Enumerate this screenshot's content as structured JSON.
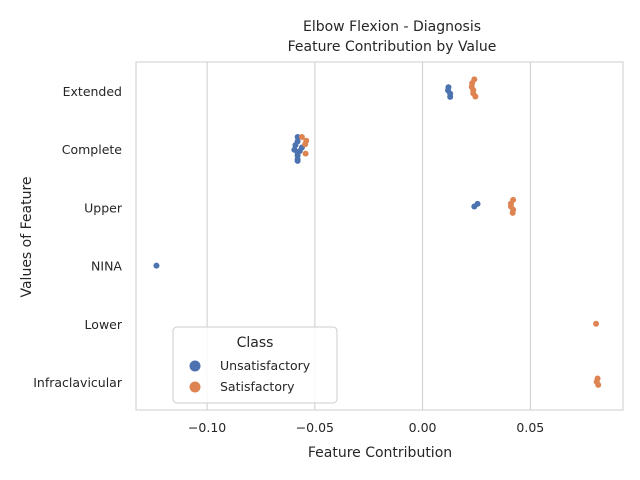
{
  "chart_data": {
    "type": "scatter",
    "subtype": "strip",
    "title": "Elbow Flexion - Diagnosis",
    "subtitle": "Feature Contribution by Value",
    "xlabel": "Feature Contribution",
    "ylabel": "Values of Feature",
    "xlim": [
      -0.133,
      0.093
    ],
    "x_ticks": [
      -0.1,
      -0.05,
      0.0,
      0.05
    ],
    "x_tick_labels": [
      "−0.10",
      "−0.05",
      "0.00",
      "0.05"
    ],
    "categories": [
      "Extended",
      "Complete",
      "Upper",
      "NINA",
      "Lower",
      "Infraclavicular"
    ],
    "grid": "vertical",
    "legend": {
      "title": "Class",
      "placement": "lower-left",
      "entries": [
        "Unsatisfactory",
        "Satisfactory"
      ]
    },
    "series": [
      {
        "name": "Unsatisfactory",
        "color": "#4c72b0",
        "points": [
          {
            "category": "Extended",
            "x": 0.012,
            "jitter": -0.13
          },
          {
            "category": "Extended",
            "x": 0.0118,
            "jitter": -0.02
          },
          {
            "category": "Extended",
            "x": 0.0128,
            "jitter": 0.09
          },
          {
            "category": "Extended",
            "x": 0.0128,
            "jitter": 0.2
          },
          {
            "category": "Complete",
            "x": -0.058,
            "jitter": -0.42
          },
          {
            "category": "Complete",
            "x": -0.058,
            "jitter": -0.27
          },
          {
            "category": "Complete",
            "x": -0.059,
            "jitter": -0.14
          },
          {
            "category": "Complete",
            "x": -0.056,
            "jitter": -0.06
          },
          {
            "category": "Complete",
            "x": -0.0595,
            "jitter": 0.02
          },
          {
            "category": "Complete",
            "x": -0.057,
            "jitter": 0.06
          },
          {
            "category": "Complete",
            "x": -0.058,
            "jitter": 0.12
          },
          {
            "category": "Complete",
            "x": -0.058,
            "jitter": 0.22
          },
          {
            "category": "Complete",
            "x": -0.058,
            "jitter": 0.35
          },
          {
            "category": "Complete",
            "x": -0.058,
            "jitter": 0.4
          },
          {
            "category": "Upper",
            "x": 0.0255,
            "jitter": -0.12
          },
          {
            "category": "Upper",
            "x": 0.024,
            "jitter": -0.03
          },
          {
            "category": "NINA",
            "x": -0.1235,
            "jitter": 0.0
          }
        ]
      },
      {
        "name": "Satisfactory",
        "color": "#dd8452",
        "points": [
          {
            "category": "Extended",
            "x": 0.024,
            "jitter": -0.4
          },
          {
            "category": "Extended",
            "x": 0.023,
            "jitter": -0.27
          },
          {
            "category": "Extended",
            "x": 0.0228,
            "jitter": -0.14
          },
          {
            "category": "Extended",
            "x": 0.0235,
            "jitter": -0.03
          },
          {
            "category": "Extended",
            "x": 0.0235,
            "jitter": 0.08
          },
          {
            "category": "Extended",
            "x": 0.0245,
            "jitter": 0.19
          },
          {
            "category": "Complete",
            "x": -0.056,
            "jitter": -0.42
          },
          {
            "category": "Complete",
            "x": -0.054,
            "jitter": -0.29
          },
          {
            "category": "Complete",
            "x": -0.0545,
            "jitter": -0.17
          },
          {
            "category": "Complete",
            "x": -0.0543,
            "jitter": 0.15
          },
          {
            "category": "Upper",
            "x": 0.042,
            "jitter": -0.26
          },
          {
            "category": "Upper",
            "x": 0.041,
            "jitter": -0.13
          },
          {
            "category": "Upper",
            "x": 0.041,
            "jitter": -0.03
          },
          {
            "category": "Upper",
            "x": 0.042,
            "jitter": 0.08
          },
          {
            "category": "Upper",
            "x": 0.0418,
            "jitter": 0.19
          },
          {
            "category": "Lower",
            "x": 0.0805,
            "jitter": 0.0
          },
          {
            "category": "Infraclavicular",
            "x": 0.0812,
            "jitter": -0.12
          },
          {
            "category": "Infraclavicular",
            "x": 0.0808,
            "jitter": -0.01
          },
          {
            "category": "Infraclavicular",
            "x": 0.0815,
            "jitter": 0.1
          }
        ]
      }
    ]
  }
}
